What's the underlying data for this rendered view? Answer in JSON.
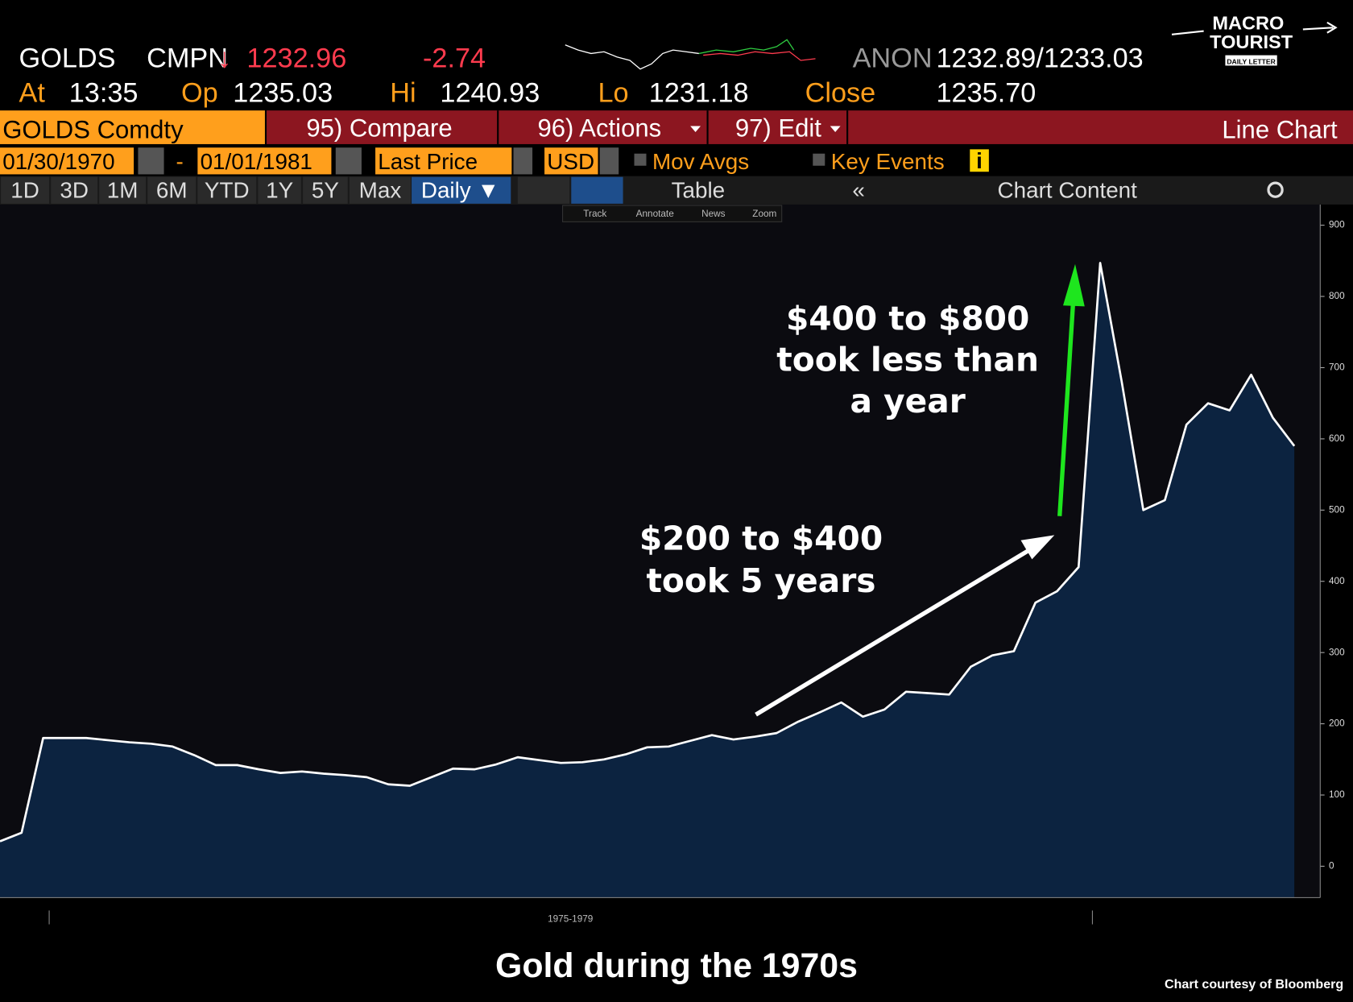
{
  "ui": {
    "ticker": "GOLDS",
    "source": "CMPN",
    "direction": "↓",
    "last": "1232.96",
    "change": "-2.74",
    "bid_source": "ANON",
    "bid_ask": "1232.89/1233.03",
    "at_label": "At",
    "at_time": "13:35",
    "open_label": "Op",
    "open": "1235.03",
    "high_label": "Hi",
    "high": "1240.93",
    "low_label": "Lo",
    "low": "1231.18",
    "close_label": "Close",
    "close": "1235.70",
    "logo": [
      "MACRO",
      "TOURIST",
      "DAILY LETTER"
    ],
    "security": "GOLDS Comdty",
    "compare": "95) Compare",
    "actions": "96) Actions",
    "edit": "97) Edit",
    "chart_kind": "Line Chart",
    "start_date": "01/30/1970",
    "date_sep": "-",
    "end_date": "01/01/1981",
    "field": "Last Price",
    "currency": "USD",
    "mov_avgs": "Mov Avgs",
    "key_events": "Key Events",
    "info": "i",
    "periods": [
      "1D",
      "3D",
      "1M",
      "6M",
      "YTD",
      "1Y",
      "5Y",
      "Max"
    ],
    "frequency": "Daily ▼",
    "table": "Table",
    "collapse": "«",
    "chart_content": "Chart Content",
    "tools": [
      "Track",
      "Annotate",
      "News",
      "Zoom"
    ]
  },
  "chart_data": {
    "type": "area",
    "title": "Gold during the 1970s",
    "credit": "Chart courtesy of Bloomberg",
    "xlabel": "1975-1979",
    "annotations": [
      "$400 to $800",
      "took less than",
      "a year",
      "$200 to $400",
      "took 5 years"
    ],
    "line_color": "#ffffff",
    "fill_color": "#0c2340",
    "values": [
      35,
      47,
      180,
      180,
      180,
      177,
      174,
      172,
      168,
      156,
      142,
      142,
      136,
      131,
      133,
      130,
      128,
      125,
      115,
      113,
      125,
      137,
      136,
      143,
      153,
      149,
      145,
      146,
      150,
      157,
      167,
      168,
      176,
      184,
      178,
      182,
      187,
      203,
      216,
      230,
      210,
      220,
      245,
      243,
      241,
      280,
      296,
      302,
      370,
      386,
      420,
      847,
      680,
      500,
      514,
      620,
      650,
      640,
      690,
      630,
      590
    ],
    "ylim": [
      -44,
      929
    ],
    "yticks": [
      0,
      100,
      200,
      300,
      400,
      500,
      600,
      700,
      800,
      900
    ]
  }
}
